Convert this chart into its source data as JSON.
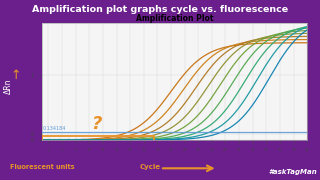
{
  "title": "Amplification plot graphs cycle vs. fluorescence",
  "plot_title": "Amplification Plot",
  "bg_color": "#6b1f8c",
  "plot_bg": "#f5f5f5",
  "threshold_label": "0.134184",
  "threshold_value": 0.134184,
  "threshold_color": "#5b9bd5",
  "box_color": "#e8922a",
  "question_color": "#e8922a",
  "arrow_color": "#e8922a",
  "hashtag": "#askTagMan",
  "fluorescent_label": "Fluorescent units",
  "cycle_label": "Cycle",
  "ylabel": "ΔRn",
  "cycle_max": 40,
  "ylim": [
    -0.0001,
    1.8
  ],
  "xlim": [
    1,
    40
  ],
  "sigmoidal_colors": [
    "#c87010",
    "#cc8018",
    "#b07820",
    "#909030",
    "#70a038",
    "#50a850",
    "#30a870",
    "#1898a0",
    "#1080b0"
  ],
  "noisy_seed": 42
}
